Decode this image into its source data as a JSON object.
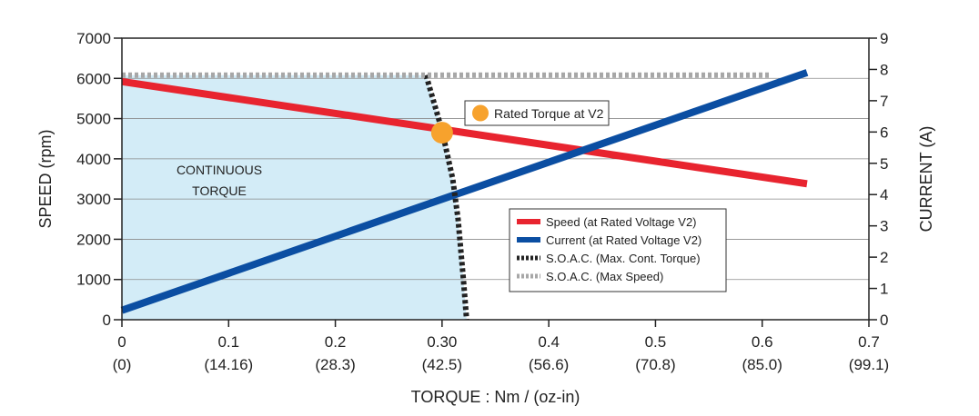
{
  "chart_data": {
    "type": "line",
    "x_axis": {
      "title": "TORQUE : Nm / (oz-in)",
      "range": [
        0,
        0.7
      ],
      "ticks": [
        0,
        0.1,
        0.2,
        0.3,
        0.4,
        0.5,
        0.6,
        0.7
      ],
      "tick_labels": [
        "0",
        "0.1",
        "0.2",
        "0.30",
        "0.4",
        "0.5",
        "0.6",
        "0.7"
      ],
      "tick_sublabels": [
        "(0)",
        "(14.16)",
        "(28.3)",
        "(42.5)",
        "(56.6)",
        "(70.8)",
        "(85.0)",
        "(99.1)"
      ]
    },
    "y_axis_left": {
      "title": "SPEED (rpm)",
      "range": [
        0,
        7000
      ],
      "ticks": [
        0,
        1000,
        2000,
        3000,
        4000,
        5000,
        6000,
        7000
      ],
      "tick_labels": [
        "0",
        "1000",
        "2000",
        "3000",
        "4000",
        "5000",
        "6000",
        "7000"
      ]
    },
    "y_axis_right": {
      "title": "CURRENT (A)",
      "range": [
        0,
        9
      ],
      "ticks": [
        0,
        1,
        2,
        3,
        4,
        5,
        6,
        7,
        8,
        9
      ],
      "tick_labels": [
        "0",
        "1",
        "2",
        "3",
        "4",
        "5",
        "6",
        "7",
        "8",
        "9"
      ]
    },
    "grid": "horizontal",
    "series": [
      {
        "name": "Speed (at Rated  Voltage V2)",
        "axis": "left",
        "color": "#e8242f",
        "style": "solid",
        "points": [
          [
            0,
            5920
          ],
          [
            0.642,
            3380
          ]
        ]
      },
      {
        "name": "Current (at Rated  Voltage V2)",
        "axis": "right",
        "color": "#0b4ea2",
        "style": "solid",
        "points": [
          [
            0,
            0.3
          ],
          [
            0.642,
            7.9
          ]
        ]
      },
      {
        "name": "S.O.A.C. (Max. Cont. Torque)",
        "axis": "left",
        "color": "#222222",
        "style": "dashed",
        "points": [
          [
            0.285,
            6080
          ],
          [
            0.3,
            4700
          ],
          [
            0.31,
            3500
          ],
          [
            0.315,
            2500
          ],
          [
            0.32,
            1000
          ],
          [
            0.323,
            0
          ]
        ]
      },
      {
        "name": "S.O.A.C. (Max Speed)",
        "axis": "left",
        "color": "#a7a7a7",
        "style": "dashed",
        "points": [
          [
            0,
            6080
          ],
          [
            0.607,
            6080
          ]
        ]
      }
    ],
    "region": {
      "label_lines": [
        "CONTINUOUS",
        "TORQUE"
      ],
      "color": "#d3ecf7"
    },
    "annotation": {
      "label": "Rated Torque at V2",
      "point": [
        0.3,
        4650
      ],
      "color": "#f7a22d"
    },
    "legend_position": "right-center"
  }
}
